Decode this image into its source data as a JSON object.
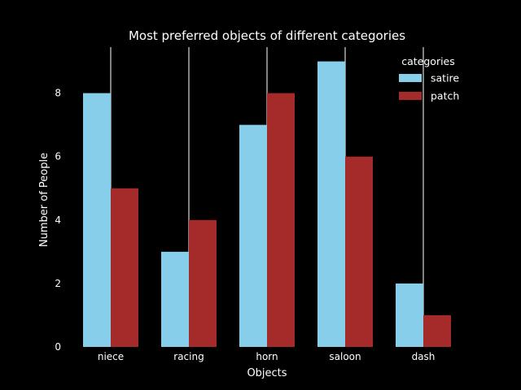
{
  "chart_data": {
    "type": "bar",
    "title": "Most preferred objects of different categories",
    "xlabel": "Objects",
    "ylabel": "Number of People",
    "categories": [
      "niece",
      "racing",
      "horn",
      "saloon",
      "dash"
    ],
    "series": [
      {
        "name": "satire",
        "values": [
          8,
          3,
          7,
          9,
          2
        ],
        "color": "#87ceeb"
      },
      {
        "name": "patch",
        "values": [
          5,
          4,
          8,
          6,
          1
        ],
        "color": "#a52a2a"
      }
    ],
    "ylim": [
      0,
      9.45
    ],
    "yticks": [
      0,
      2,
      4,
      6,
      8
    ],
    "grid": "x-only",
    "legend": {
      "title": "categories",
      "placement": "top-right"
    },
    "background": "#000000"
  }
}
